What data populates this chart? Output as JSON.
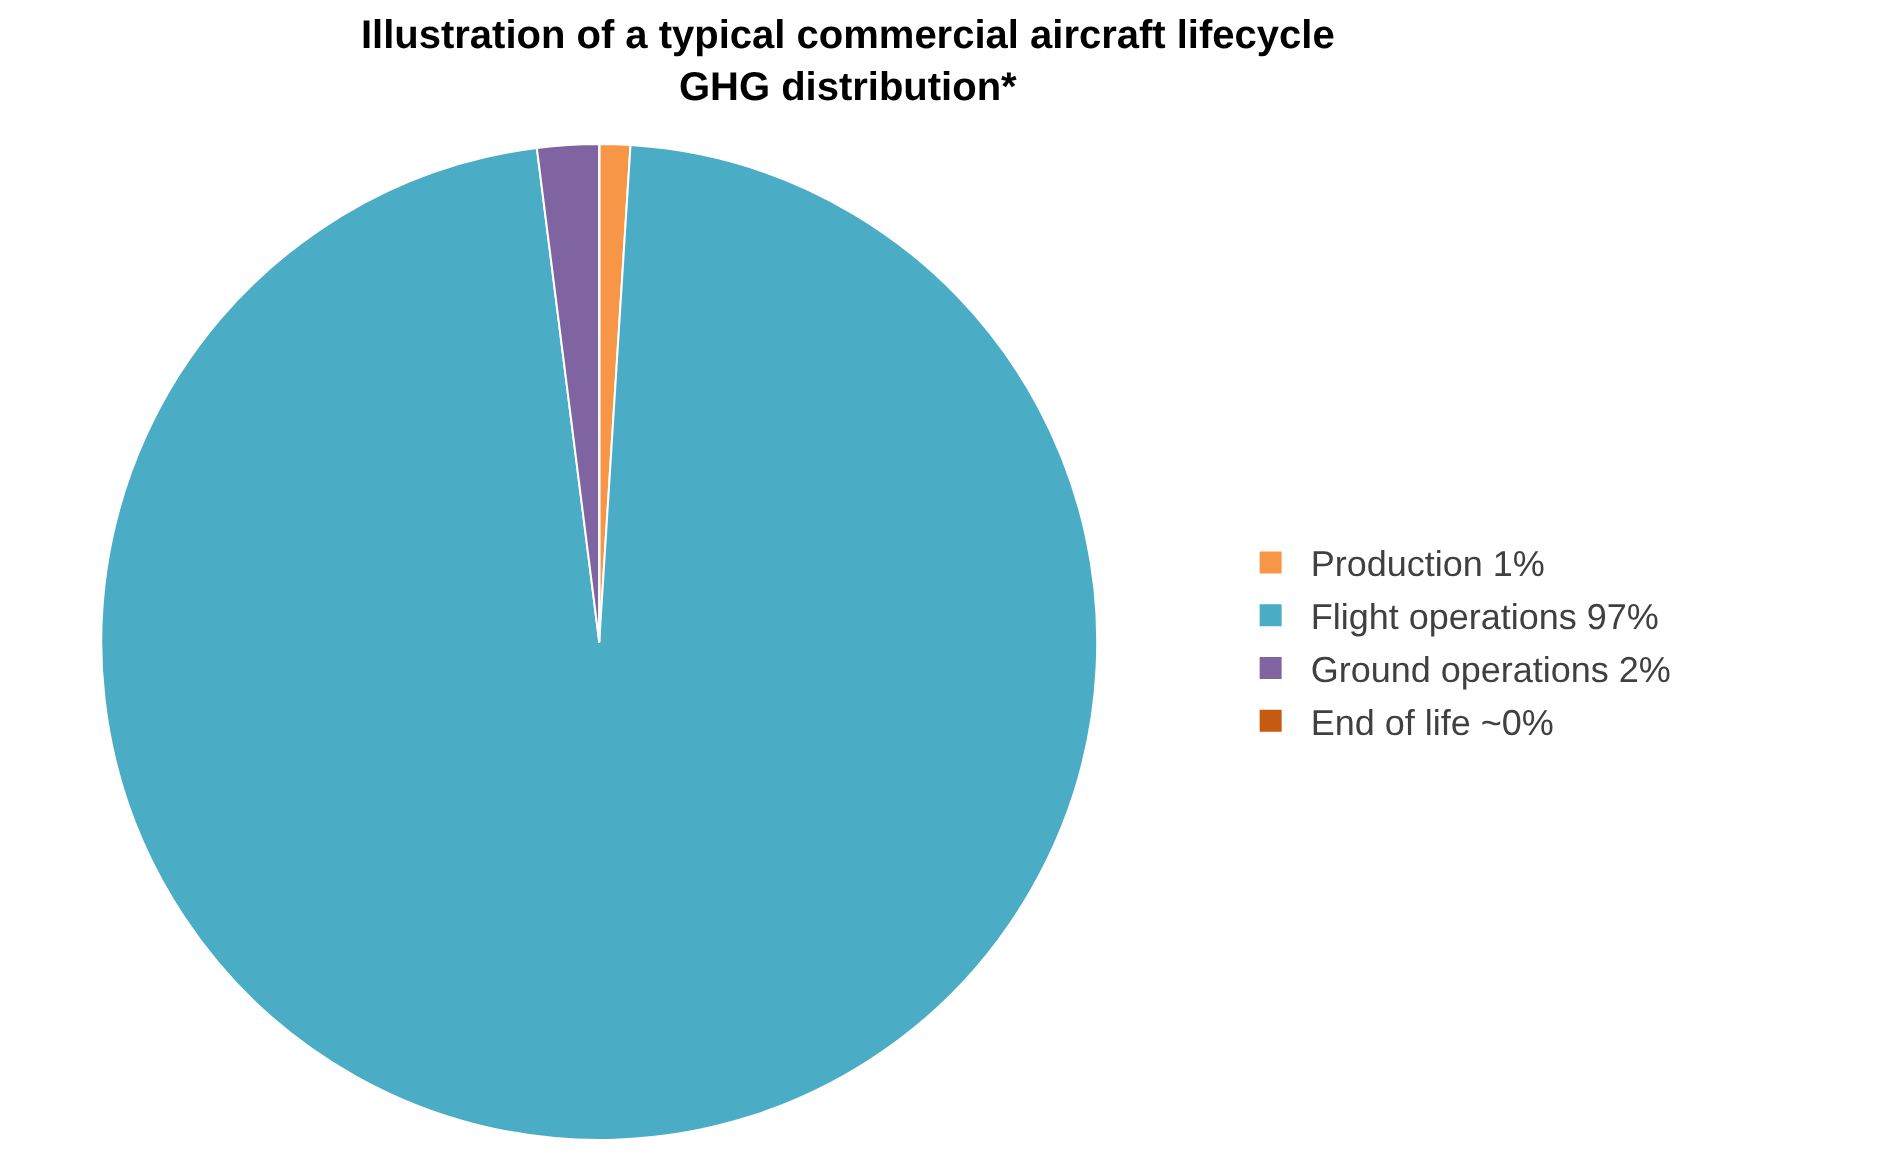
{
  "chart_data": {
    "type": "pie",
    "title": "Illustration of a typical commercial aircraft lifecycle\nGHG distribution*",
    "categories": [
      "Production 1%",
      "Flight operations 97%",
      "Ground operations 2%",
      "End of life ~0%"
    ],
    "values": [
      1,
      97,
      2,
      0
    ],
    "colors": [
      "#f79646",
      "#4bacc6",
      "#8064a2",
      "#c55a11"
    ],
    "legend": "right"
  }
}
